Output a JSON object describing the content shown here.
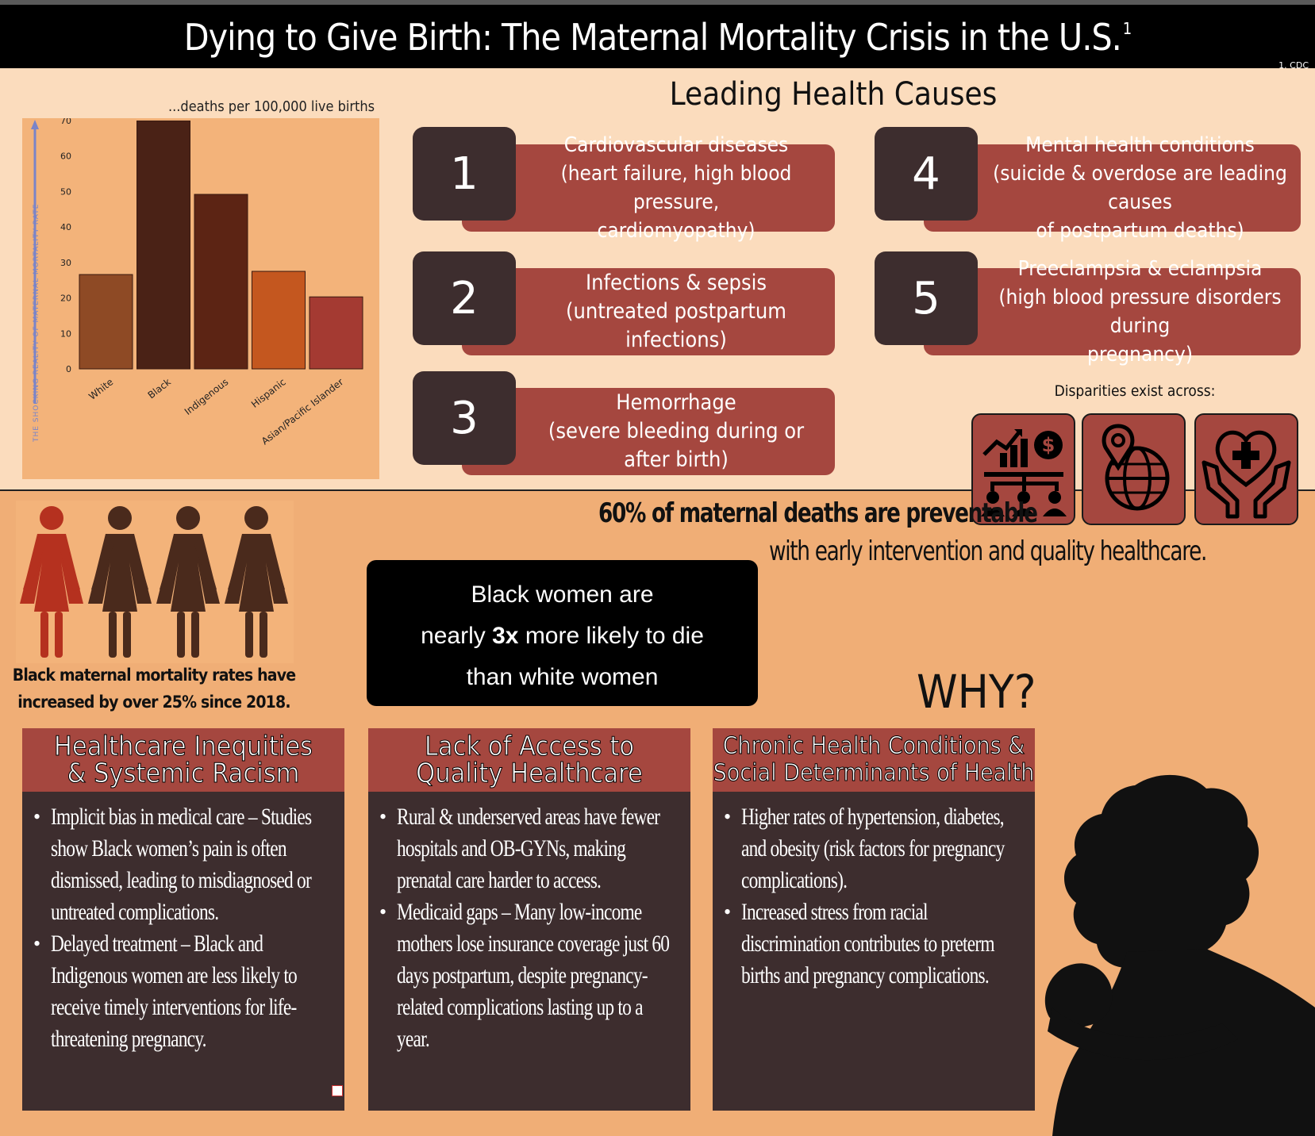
{
  "title": {
    "text": "Dying to Give Birth: The Maternal Mortality Crisis in the U.S.",
    "footnote_mark": "1"
  },
  "source_note": "1.  CDC",
  "chart": {
    "units_label": "...deaths per 100,000 live births"
  },
  "chart_data": {
    "type": "bar",
    "title": "",
    "xlabel": "",
    "ylabel": "THE SHOCKING REALITY OF MATERNAL MORTALITY RATE",
    "categories": [
      "White",
      "Black",
      "Indigenous",
      "Hispanic",
      "Asian/Pacific Islander"
    ],
    "values": [
      26.6,
      69.9,
      49.2,
      27.5,
      20.3
    ],
    "colors": [
      "#8e4a25",
      "#4a2216",
      "#5c2414",
      "#c4571f",
      "#a43a32"
    ],
    "ylim": [
      0,
      70
    ],
    "yticks": [
      "0",
      "10",
      "20",
      "30",
      "40",
      "50",
      "60",
      "70"
    ],
    "grid": false
  },
  "causes": {
    "heading": "Leading Health Causes",
    "items": [
      {
        "number": "1",
        "lines": [
          "Cardiovascular diseases",
          "(heart failure, high blood pressure,",
          "cardiomyopathy)"
        ]
      },
      {
        "number": "2",
        "lines": [
          "Infections & sepsis",
          "(untreated postpartum",
          "infections)"
        ]
      },
      {
        "number": "3",
        "lines": [
          "Hemorrhage",
          "(severe bleeding during or",
          "after birth)"
        ]
      },
      {
        "number": "4",
        "lines": [
          "Mental health conditions",
          "(suicide & overdose are leading causes",
          "of postpartum deaths)"
        ]
      },
      {
        "number": "5",
        "lines": [
          "Preeclampsia & eclampsia",
          "(high blood pressure disorders during",
          "pregnancy)"
        ]
      }
    ]
  },
  "disparities": {
    "label": "Disparities exist across:",
    "icons": [
      "socioeconomic-status-icon",
      "geographic-location-icon",
      "healthcare-access-icon"
    ],
    "color": "#a5473f"
  },
  "preventable": {
    "bold": "60% of maternal deaths are preventable",
    "sub": "with early intervention and quality healthcare."
  },
  "figures": {
    "caption_line1": "Black maternal mortality rates have",
    "caption_line2": "increased by over 25% since 2018.",
    "highlight_color": "#b5311f",
    "base_color": "#4a2a1c"
  },
  "stat": {
    "line1": "Black women are",
    "line2_pre": "nearly ",
    "line2_bold": "3x",
    "line2_post": " more likely to die",
    "line3": "than white women"
  },
  "why": {
    "heading": "WHY?",
    "columns": [
      {
        "title1": "Healthcare Inequities",
        "title2": "& Systemic Racism",
        "bullets": [
          "Implicit bias in medical care – Studies show Black women’s pain is often dismissed, leading to misdiagnosed or untreated complications.",
          "Delayed treatment – Black and Indigenous women are less likely to receive timely interventions for life-threatening pregnancy."
        ]
      },
      {
        "title1": "Lack of Access to",
        "title2": "Quality Healthcare",
        "bullets": [
          "Rural & underserved areas have fewer hospitals and OB-GYNs, making prenatal care harder to access.",
          "Medicaid gaps – Many low-income mothers lose insurance coverage just 60 days postpartum, despite pregnancy-related complications lasting up to a year."
        ]
      },
      {
        "title1": "Chronic Health Conditions &",
        "title2": "Social Determinants of Health",
        "bullets": [
          "Higher rates of hypertension, diabetes, and obesity (risk factors for pregnancy complications).",
          "Increased stress from racial discrimination contributes to preterm births and pregnancy complications."
        ]
      }
    ]
  }
}
